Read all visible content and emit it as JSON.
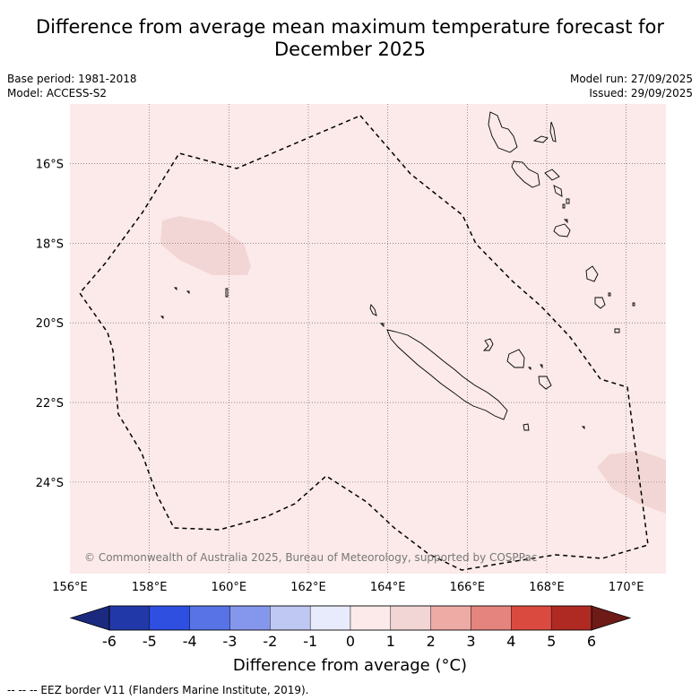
{
  "title": {
    "line1": "Difference from average mean maximum temperature forecast for",
    "line2": "December 2025"
  },
  "meta_left": {
    "base_period": "Base period: 1981-2018",
    "model": "Model: ACCESS-S2"
  },
  "meta_right": {
    "model_run": "Model run: 27/09/2025",
    "issued": "Issued: 29/09/2025"
  },
  "map": {
    "lon_range": [
      156,
      171
    ],
    "lat_range": [
      -26.3,
      -14.5
    ],
    "lon_ticks": [
      156,
      158,
      160,
      162,
      164,
      166,
      168,
      170
    ],
    "lon_labels": [
      "156°E",
      "158°E",
      "160°E",
      "162°E",
      "164°E",
      "166°E",
      "168°E",
      "170°E"
    ],
    "lat_ticks": [
      -16,
      -18,
      -20,
      -22,
      -24
    ],
    "lat_labels": [
      "16°S",
      "18°S",
      "20°S",
      "22°S",
      "24°S"
    ],
    "background_color": "#fbeae9",
    "anomaly_patch_color": "#f2d6d5",
    "copyright": "© Commonwealth of Australia 2025, Bureau of Meteorology, supported by COSPPac"
  },
  "colorbar": {
    "ticks": [
      "-6",
      "-5",
      "-4",
      "-3",
      "-2",
      "-1",
      "0",
      "1",
      "2",
      "3",
      "4",
      "5",
      "6"
    ],
    "under_color": "#1b2a7e",
    "over_color": "#6e1b17",
    "colors": [
      "#2139a8",
      "#2e4fe0",
      "#5773e6",
      "#8597ec",
      "#bfc7f3",
      "#e8ebfb",
      "#fbeae9",
      "#f2d6d5",
      "#eeaaa5",
      "#e5847e",
      "#db4a3f",
      "#b02a24"
    ],
    "title": "Difference from average (°C)"
  },
  "footnote": "--  --  -- EEZ border V11 (Flanders Marine Institute, 2019)."
}
